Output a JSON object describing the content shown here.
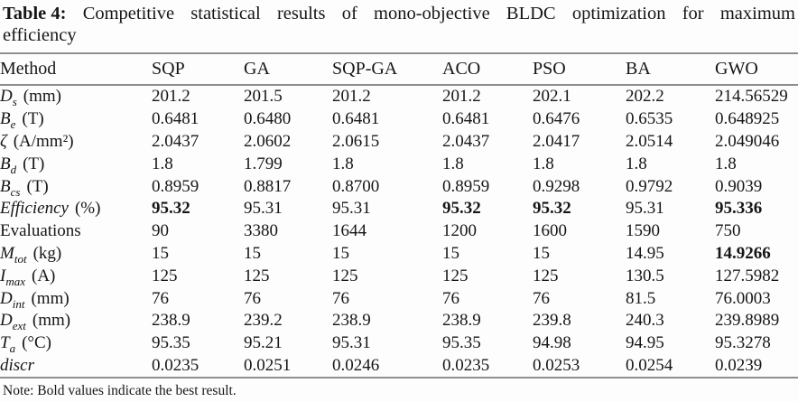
{
  "caption": {
    "label": "Table 4:",
    "line1_words": [
      "Competitive",
      "statistical",
      "results",
      "of",
      "mono-objective",
      "BLDC",
      "optimization",
      "for",
      "maximum"
    ],
    "line2": "efficiency",
    "full_text": "Table 4: Competitive statistical results of mono-objective BLDC optimization for maximum efficiency"
  },
  "table": {
    "columns": [
      "Method",
      "SQP",
      "GA",
      "SQP-GA",
      "ACO",
      "PSO",
      "BA",
      "GWO"
    ],
    "rows": [
      {
        "label": {
          "text": "D",
          "sub": "s",
          "unit": "(mm)",
          "italic": true
        },
        "values": [
          "201.2",
          "201.5",
          "201.2",
          "201.2",
          "202.1",
          "202.2",
          "214.56529"
        ],
        "bold": []
      },
      {
        "label": {
          "text": "B",
          "sub": "e",
          "unit": "(T)",
          "italic": true
        },
        "values": [
          "0.6481",
          "0.6480",
          "0.6481",
          "0.6481",
          "0.6476",
          "0.6535",
          "0.648925"
        ],
        "bold": []
      },
      {
        "label": {
          "text": "ζ",
          "sub": "",
          "unit": "(A/mm²)",
          "italic": true
        },
        "values": [
          "2.0437",
          "2.0602",
          "2.0615",
          "2.0437",
          "2.0417",
          "2.0514",
          "2.049046"
        ],
        "bold": []
      },
      {
        "label": {
          "text": "B",
          "sub": "d",
          "unit": "(T)",
          "italic": true
        },
        "values": [
          "1.8",
          "1.799",
          "1.8",
          "1.8",
          "1.8",
          "1.8",
          "1.8"
        ],
        "bold": []
      },
      {
        "label": {
          "text": "B",
          "sub": "cs",
          "unit": "(T)",
          "italic": true
        },
        "values": [
          "0.8959",
          "0.8817",
          "0.8700",
          "0.8959",
          "0.9298",
          "0.9792",
          "0.9039"
        ],
        "bold": []
      },
      {
        "label": {
          "text": "Efficiency",
          "sub": "",
          "unit": "(%)",
          "italic": true
        },
        "values": [
          "95.32",
          "95.31",
          "95.31",
          "95.32",
          "95.32",
          "95.31",
          "95.336"
        ],
        "bold": [
          0,
          3,
          4,
          6
        ]
      },
      {
        "label": {
          "text": "Evaluations",
          "sub": "",
          "unit": "",
          "italic": false
        },
        "values": [
          "90",
          "3380",
          "1644",
          "1200",
          "1600",
          "1590",
          "750"
        ],
        "bold": []
      },
      {
        "label": {
          "text": "M",
          "sub": "tot",
          "unit": "(kg)",
          "italic": true
        },
        "values": [
          "15",
          "15",
          "15",
          "15",
          "15",
          "14.95",
          "14.9266"
        ],
        "bold": [
          6
        ]
      },
      {
        "label": {
          "text": "I",
          "sub": "max",
          "unit": "(A)",
          "italic": true
        },
        "values": [
          "125",
          "125",
          "125",
          "125",
          "125",
          "130.5",
          "127.5982"
        ],
        "bold": []
      },
      {
        "label": {
          "text": "D",
          "sub": "int",
          "unit": "(mm)",
          "italic": true
        },
        "values": [
          "76",
          "76",
          "76",
          "76",
          "76",
          "81.5",
          "76.0003"
        ],
        "bold": []
      },
      {
        "label": {
          "text": "D",
          "sub": "ext",
          "unit": "(mm)",
          "italic": true
        },
        "values": [
          "238.9",
          "239.2",
          "238.9",
          "238.9",
          "239.8",
          "240.3",
          "239.8989"
        ],
        "bold": []
      },
      {
        "label": {
          "text": "T",
          "sub": "a",
          "unit": "(°C)",
          "italic": true
        },
        "values": [
          "95.35",
          "95.21",
          "95.31",
          "95.35",
          "94.98",
          "94.95",
          "95.3278"
        ],
        "bold": []
      },
      {
        "label": {
          "text": "discr",
          "sub": "",
          "unit": "",
          "italic": true
        },
        "values": [
          "0.0235",
          "0.0251",
          "0.0246",
          "0.0235",
          "0.0253",
          "0.0254",
          "0.0239"
        ],
        "bold": []
      }
    ]
  },
  "note": "Note: Bold values indicate the best result.",
  "colors": {
    "text": "#161616",
    "rule": "#8e8e8e",
    "background": "#fdfdfd"
  }
}
